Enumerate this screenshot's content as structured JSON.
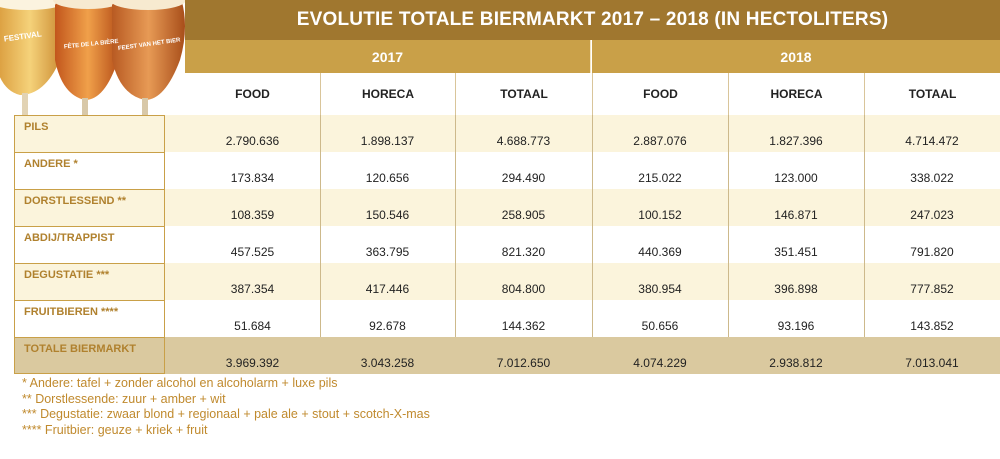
{
  "title": "EVOLUTIE TOTALE BIERMARKT 2017 – 2018 (IN HECTOLITERS)",
  "years": [
    "2017",
    "2018"
  ],
  "columns": [
    "FOOD",
    "HORECA",
    "TOTAAL",
    "FOOD",
    "HORECA",
    "TOTAAL"
  ],
  "rows": [
    {
      "label": "PILS",
      "values": [
        "2.790.636",
        "1.898.137",
        "4.688.773",
        "2.887.076",
        "1.827.396",
        "4.714.472"
      ]
    },
    {
      "label": "ANDERE *",
      "values": [
        "173.834",
        "120.656",
        "294.490",
        "215.022",
        "123.000",
        "338.022"
      ]
    },
    {
      "label": "DORSTLESSEND **",
      "values": [
        "108.359",
        "150.546",
        "258.905",
        "100.152",
        "146.871",
        "247.023"
      ]
    },
    {
      "label": "ABDIJ/TRAPPIST",
      "values": [
        "457.525",
        "363.795",
        "821.320",
        "440.369",
        "351.451",
        "791.820"
      ]
    },
    {
      "label": "DEGUSTATIE ***",
      "values": [
        "387.354",
        "417.446",
        "804.800",
        "380.954",
        "396.898",
        "777.852"
      ]
    },
    {
      "label": "FRUITBIEREN ****",
      "values": [
        "51.684",
        "92.678",
        "144.362",
        "50.656",
        "93.196",
        "143.852"
      ]
    },
    {
      "label": "TOTALE BIERMARKT",
      "values": [
        "3.969.392",
        "3.043.258",
        "7.012.650",
        "4.074.229",
        "2.938.812",
        "7.013.041"
      ]
    }
  ],
  "notes": [
    "* Andere: tafel + zonder alcohol en alcoholarm + luxe pils",
    "** Dorstlessende: zuur + amber + wit",
    "*** Degustatie: zwaar blond + regionaal + pale ale + stout + scotch-X-mas",
    "**** Fruitbier: geuze + kriek + fruit"
  ],
  "glass_labels": [
    "FESTIVAL",
    "FÊTE DE LA BIÈRE",
    "FEEST VAN HET BIER"
  ],
  "colors": {
    "title_bg": "#a0772f",
    "year_bg": "#c9a048",
    "label_text": "#b0812e",
    "alt_row": "#fbf4dc",
    "total_row": "#dac99f",
    "notes_text": "#c08a2e"
  }
}
